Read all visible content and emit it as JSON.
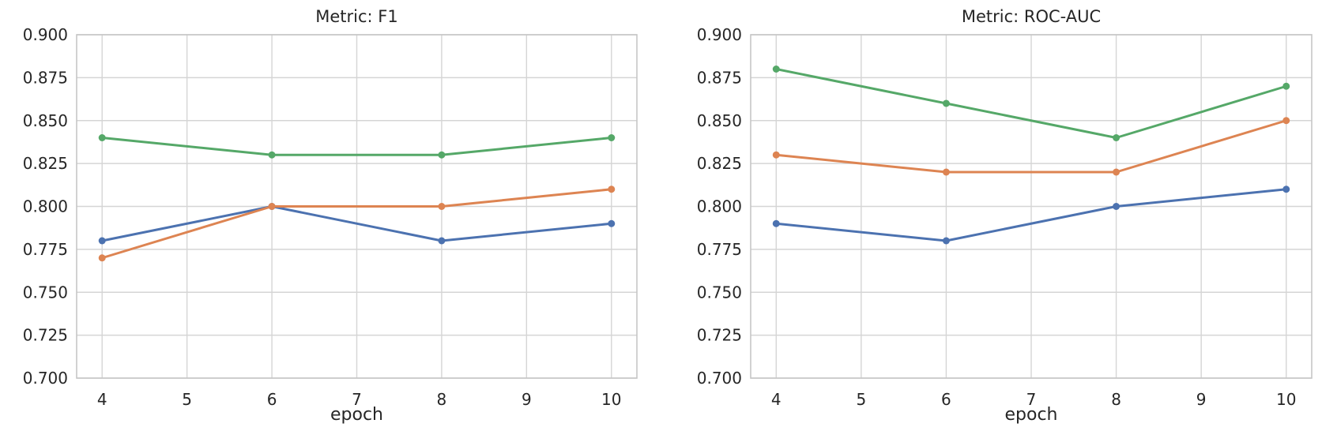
{
  "figure": {
    "background": "#ffffff",
    "text_color": "#262626",
    "grid_color": "#d5d5d5",
    "spine_color": "#c6c6c6"
  },
  "chart_data": [
    {
      "type": "line",
      "title": "Metric: F1",
      "xlabel": "epoch",
      "ylabel": "",
      "x": [
        4,
        6,
        8,
        10
      ],
      "xticks": [
        4,
        5,
        6,
        7,
        8,
        9,
        10
      ],
      "yticks": [
        0.7,
        0.725,
        0.75,
        0.775,
        0.8,
        0.825,
        0.85,
        0.875,
        0.9
      ],
      "xlim": [
        3.7,
        10.3
      ],
      "ylim": [
        0.7,
        0.9
      ],
      "grid": true,
      "legend": "none",
      "marker": "circle",
      "series": [
        {
          "name": "blue",
          "color": "#4C72B0",
          "values": [
            0.78,
            0.8,
            0.78,
            0.79
          ]
        },
        {
          "name": "orange",
          "color": "#DD8452",
          "values": [
            0.77,
            0.8,
            0.8,
            0.81
          ]
        },
        {
          "name": "green",
          "color": "#55A868",
          "values": [
            0.84,
            0.83,
            0.83,
            0.84
          ]
        }
      ]
    },
    {
      "type": "line",
      "title": "Metric: ROC-AUC",
      "xlabel": "epoch",
      "ylabel": "",
      "x": [
        4,
        6,
        8,
        10
      ],
      "xticks": [
        4,
        5,
        6,
        7,
        8,
        9,
        10
      ],
      "yticks": [
        0.7,
        0.725,
        0.75,
        0.775,
        0.8,
        0.825,
        0.85,
        0.875,
        0.9
      ],
      "xlim": [
        3.7,
        10.3
      ],
      "ylim": [
        0.7,
        0.9
      ],
      "grid": true,
      "legend": "none",
      "marker": "circle",
      "series": [
        {
          "name": "blue",
          "color": "#4C72B0",
          "values": [
            0.79,
            0.78,
            0.8,
            0.81
          ]
        },
        {
          "name": "orange",
          "color": "#DD8452",
          "values": [
            0.83,
            0.82,
            0.82,
            0.85
          ]
        },
        {
          "name": "green",
          "color": "#55A868",
          "values": [
            0.88,
            0.86,
            0.84,
            0.87
          ]
        }
      ]
    }
  ]
}
